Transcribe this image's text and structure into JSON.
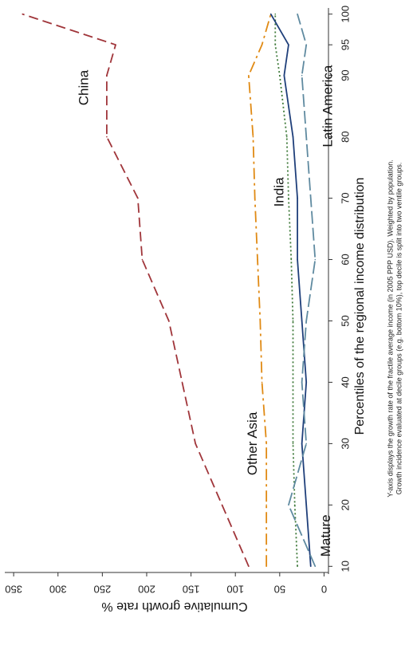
{
  "chart_data": {
    "type": "line",
    "orientation": "rotated-90-clockwise",
    "xlabel": "Percentiles of the regional income distribution",
    "ylabel": "Cumulative growth rate %",
    "xlim": [
      9,
      101
    ],
    "ylim": [
      -5,
      360
    ],
    "x_ticks": [
      10,
      20,
      30,
      40,
      50,
      60,
      70,
      80,
      90,
      95,
      100
    ],
    "y_ticks": [
      0,
      50,
      100,
      150,
      200,
      250,
      300,
      350
    ],
    "x_tick_labels": [
      "10",
      "20",
      "30",
      "40",
      "50",
      "60",
      "70",
      "80",
      "90",
      "95",
      "100"
    ],
    "y_tick_labels": [
      "0",
      "50",
      "100",
      "150",
      "200",
      "250",
      "300",
      "350"
    ],
    "x": [
      10,
      20,
      30,
      40,
      50,
      60,
      70,
      80,
      90,
      95,
      100
    ],
    "grid": false,
    "legend": "none",
    "series": [
      {
        "name": "China",
        "values": [
          85,
          115,
          145,
          160,
          175,
          205,
          210,
          245,
          245,
          235,
          340
        ],
        "color": "#a0353a",
        "dash": "12,6"
      },
      {
        "name": "Other Asia",
        "values": [
          65,
          65,
          65,
          70,
          72,
          75,
          78,
          80,
          85,
          70,
          60
        ],
        "color": "#e08a14",
        "dash": "14,5,3,5"
      },
      {
        "name": "India",
        "values": [
          30,
          33,
          35,
          35,
          35,
          37,
          40,
          42,
          50,
          55,
          55
        ],
        "color": "#3f7a3a",
        "dash": "2,3"
      },
      {
        "name": "Mature",
        "values": [
          15,
          20,
          25,
          20,
          25,
          30,
          30,
          35,
          45,
          40,
          60
        ],
        "color": "#1f3f7a",
        "dash": ""
      },
      {
        "name": "Latin America",
        "values": [
          10,
          40,
          20,
          25,
          20,
          10,
          15,
          20,
          25,
          20,
          30
        ],
        "color": "#5f8aa0",
        "dash": "16,5"
      }
    ],
    "series_labels": [
      {
        "text": "China",
        "x": 88,
        "y": 270
      },
      {
        "text": "Other Asia",
        "x": 30,
        "y": 80
      },
      {
        "text": "India",
        "x": 71,
        "y": 50
      },
      {
        "text": "Mature",
        "x": 15,
        "y": -3
      },
      {
        "text": "Latin America",
        "x": 85,
        "y": -5
      }
    ],
    "note_lines": [
      "Y-axis displays the growth rate of the fractile average income (in 2005 PPP USD). Weighted by population.",
      "Growth incidence evaluated at decile groups (e.g. bottom 10%), top decile is split into two ventile groups."
    ]
  }
}
